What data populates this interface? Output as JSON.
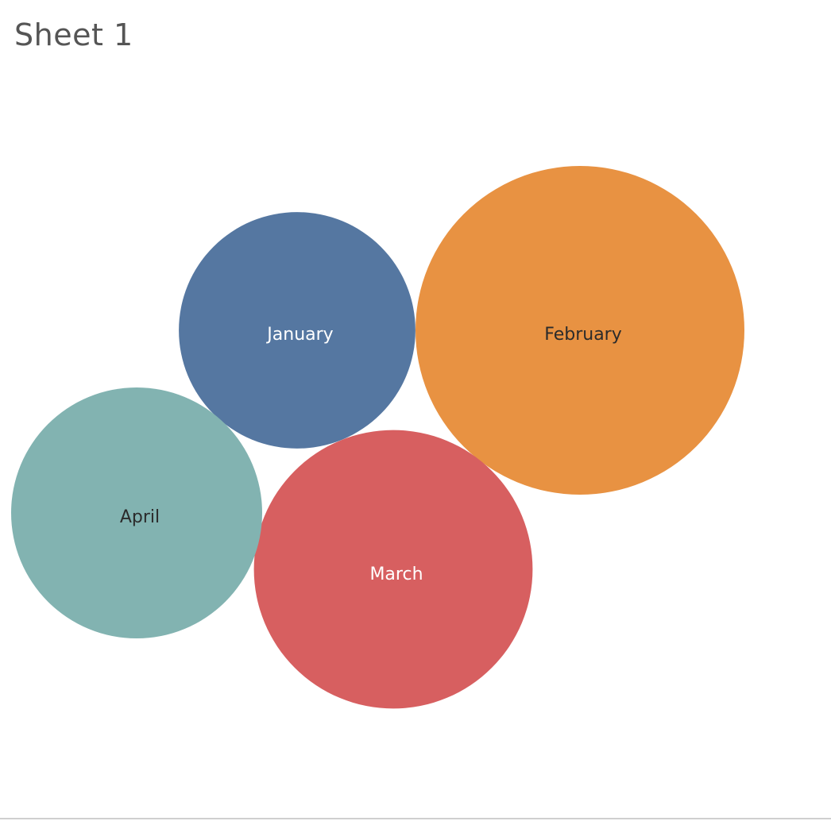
{
  "sheet": {
    "title": "Sheet 1"
  },
  "chart_data": {
    "type": "bubble",
    "title": "Sheet 1",
    "legend": "none",
    "grid": false,
    "categories": [
      "January",
      "February",
      "March",
      "April"
    ],
    "values": [
      88,
      170,
      122,
      99
    ],
    "colors": [
      "#5577a1",
      "#e89242",
      "#d75f60",
      "#82b3b1"
    ],
    "label_colors": [
      "#ffffff",
      "#2b2b2b",
      "#ffffff",
      "#2b2b2b"
    ]
  }
}
